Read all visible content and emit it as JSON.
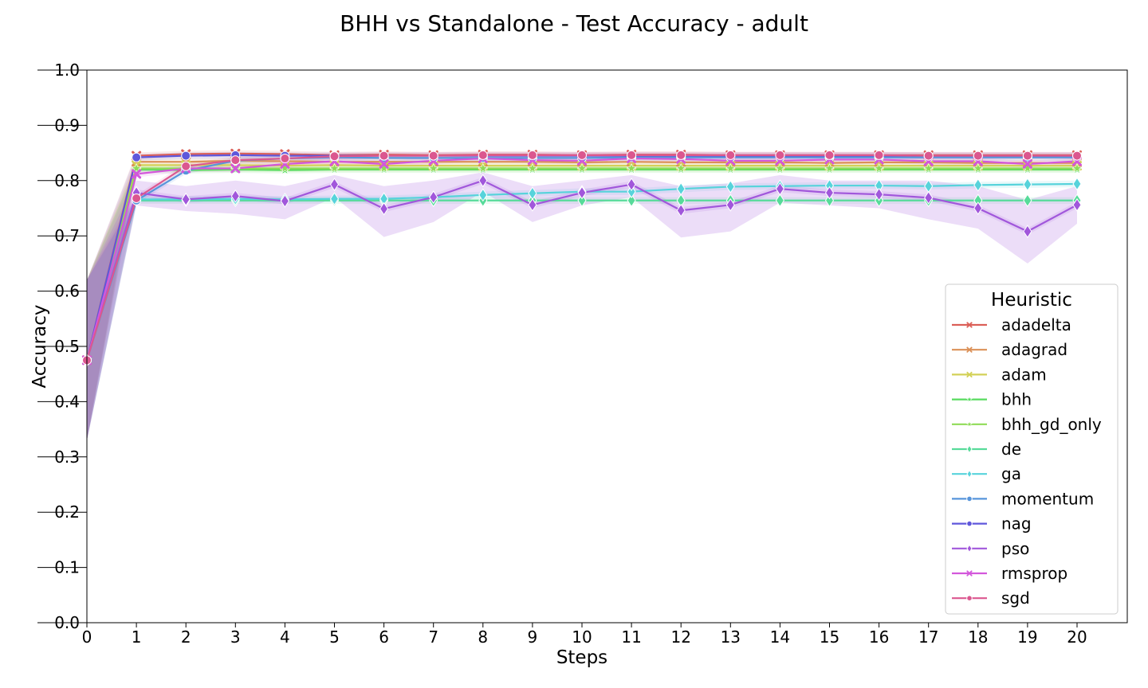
{
  "chart_data": {
    "type": "line",
    "title": "BHH vs Standalone - Test Accuracy - adult",
    "xlabel": "Steps",
    "ylabel": "Accuracy",
    "xlim": [
      0,
      21
    ],
    "ylim": [
      0.0,
      1.0
    ],
    "x": [
      0,
      1,
      2,
      3,
      4,
      5,
      6,
      7,
      8,
      9,
      10,
      11,
      12,
      13,
      14,
      15,
      16,
      17,
      18,
      19,
      20
    ],
    "xticks": [
      "0",
      "1",
      "2",
      "3",
      "4",
      "5",
      "6",
      "7",
      "8",
      "9",
      "10",
      "11",
      "12",
      "13",
      "14",
      "15",
      "16",
      "17",
      "18",
      "19",
      "20"
    ],
    "yticks": [
      "0.0",
      "0.1",
      "0.2",
      "0.3",
      "0.4",
      "0.5",
      "0.6",
      "0.7",
      "0.8",
      "0.9",
      "1.0"
    ],
    "grid": false,
    "legend": {
      "title": "Heuristic",
      "position": "right"
    },
    "series": [
      {
        "name": "adadelta",
        "color": "#db5f57",
        "marker": "x",
        "values": [
          0.475,
          0.845,
          0.848,
          0.849,
          0.848,
          0.846,
          0.847,
          0.846,
          0.847,
          0.847,
          0.846,
          0.847,
          0.847,
          0.846,
          0.846,
          0.846,
          0.846,
          0.846,
          0.846,
          0.846,
          0.846
        ],
        "band": [
          0.62,
          0.33
        ]
      },
      {
        "name": "adagrad",
        "color": "#db9057",
        "marker": "x",
        "values": [
          0.475,
          0.834,
          0.834,
          0.836,
          0.835,
          0.834,
          0.834,
          0.834,
          0.834,
          0.834,
          0.833,
          0.834,
          0.833,
          0.833,
          0.833,
          0.832,
          0.833,
          0.833,
          0.832,
          0.832,
          0.832
        ],
        "band": [
          0.62,
          0.33
        ]
      },
      {
        "name": "adam",
        "color": "#d3d157",
        "marker": "x",
        "values": [
          0.475,
          0.828,
          0.828,
          0.828,
          0.827,
          0.828,
          0.827,
          0.827,
          0.827,
          0.827,
          0.827,
          0.827,
          0.827,
          0.827,
          0.827,
          0.827,
          0.827,
          0.827,
          0.827,
          0.827,
          0.827
        ],
        "band": [
          0.62,
          0.33
        ]
      },
      {
        "name": "bhh",
        "color": "#57db5f",
        "marker": "star",
        "values": [
          0.475,
          0.82,
          0.819,
          0.82,
          0.819,
          0.82,
          0.82,
          0.82,
          0.82,
          0.82,
          0.82,
          0.82,
          0.82,
          0.82,
          0.82,
          0.82,
          0.82,
          0.82,
          0.82,
          0.82,
          0.82
        ],
        "band": [
          0.62,
          0.33
        ]
      },
      {
        "name": "bhh_gd_only",
        "color": "#8fdb57",
        "marker": "star",
        "values": [
          0.475,
          0.822,
          0.822,
          0.822,
          0.822,
          0.822,
          0.822,
          0.822,
          0.822,
          0.822,
          0.822,
          0.822,
          0.822,
          0.822,
          0.822,
          0.822,
          0.822,
          0.822,
          0.822,
          0.822,
          0.822
        ],
        "band": [
          0.62,
          0.33
        ]
      },
      {
        "name": "de",
        "color": "#57db9a",
        "marker": "diamond",
        "values": [
          0.475,
          0.764,
          0.764,
          0.764,
          0.764,
          0.764,
          0.764,
          0.764,
          0.764,
          0.764,
          0.764,
          0.764,
          0.764,
          0.764,
          0.764,
          0.764,
          0.764,
          0.764,
          0.764,
          0.764,
          0.764
        ],
        "band": [
          0.62,
          0.33
        ]
      },
      {
        "name": "ga",
        "color": "#57d3db",
        "marker": "diamond",
        "values": [
          0.475,
          0.766,
          0.766,
          0.767,
          0.766,
          0.767,
          0.767,
          0.77,
          0.774,
          0.777,
          0.78,
          0.78,
          0.785,
          0.789,
          0.79,
          0.791,
          0.791,
          0.79,
          0.792,
          0.793,
          0.794
        ],
        "band": [
          0.62,
          0.33
        ]
      },
      {
        "name": "momentum",
        "color": "#5795db",
        "marker": "circle",
        "values": [
          0.475,
          0.764,
          0.818,
          0.836,
          0.84,
          0.842,
          0.841,
          0.841,
          0.841,
          0.841,
          0.841,
          0.842,
          0.842,
          0.842,
          0.842,
          0.842,
          0.842,
          0.842,
          0.842,
          0.842,
          0.842
        ],
        "band": [
          0.62,
          0.33
        ]
      },
      {
        "name": "nag",
        "color": "#5f57db",
        "marker": "circle",
        "values": [
          0.475,
          0.842,
          0.845,
          0.846,
          0.845,
          0.845,
          0.845,
          0.845,
          0.845,
          0.845,
          0.845,
          0.845,
          0.845,
          0.845,
          0.845,
          0.845,
          0.845,
          0.845,
          0.845,
          0.845,
          0.845
        ],
        "band": [
          0.62,
          0.33
        ]
      },
      {
        "name": "pso",
        "color": "#a157db",
        "marker": "diamond",
        "values": [
          0.475,
          0.778,
          0.766,
          0.772,
          0.763,
          0.793,
          0.749,
          0.77,
          0.8,
          0.756,
          0.778,
          0.793,
          0.746,
          0.756,
          0.785,
          0.778,
          0.775,
          0.769,
          0.75,
          0.708,
          0.756
        ],
        "band": [
          0.62,
          0.33
        ]
      },
      {
        "name": "rmsprop",
        "color": "#d357db",
        "marker": "x",
        "values": [
          0.475,
          0.812,
          0.822,
          0.822,
          0.83,
          0.835,
          0.83,
          0.836,
          0.84,
          0.837,
          0.836,
          0.84,
          0.839,
          0.836,
          0.836,
          0.838,
          0.838,
          0.835,
          0.835,
          0.83,
          0.835
        ],
        "band": [
          0.62,
          0.33
        ]
      },
      {
        "name": "sgd",
        "color": "#db578f",
        "marker": "circle",
        "values": [
          0.475,
          0.768,
          0.826,
          0.837,
          0.84,
          0.844,
          0.845,
          0.845,
          0.846,
          0.846,
          0.846,
          0.846,
          0.846,
          0.846,
          0.846,
          0.846,
          0.846,
          0.845,
          0.845,
          0.845,
          0.845
        ],
        "band": [
          0.62,
          0.33
        ]
      }
    ],
    "pso_band": {
      "upper": [
        0.62,
        0.8,
        0.79,
        0.8,
        0.79,
        0.81,
        0.79,
        0.8,
        0.815,
        0.79,
        0.8,
        0.81,
        0.79,
        0.795,
        0.81,
        0.8,
        0.8,
        0.8,
        0.79,
        0.765,
        0.79
      ],
      "lower": [
        0.33,
        0.755,
        0.745,
        0.74,
        0.73,
        0.77,
        0.698,
        0.725,
        0.78,
        0.725,
        0.755,
        0.77,
        0.697,
        0.708,
        0.76,
        0.755,
        0.75,
        0.73,
        0.713,
        0.65,
        0.722
      ]
    }
  }
}
